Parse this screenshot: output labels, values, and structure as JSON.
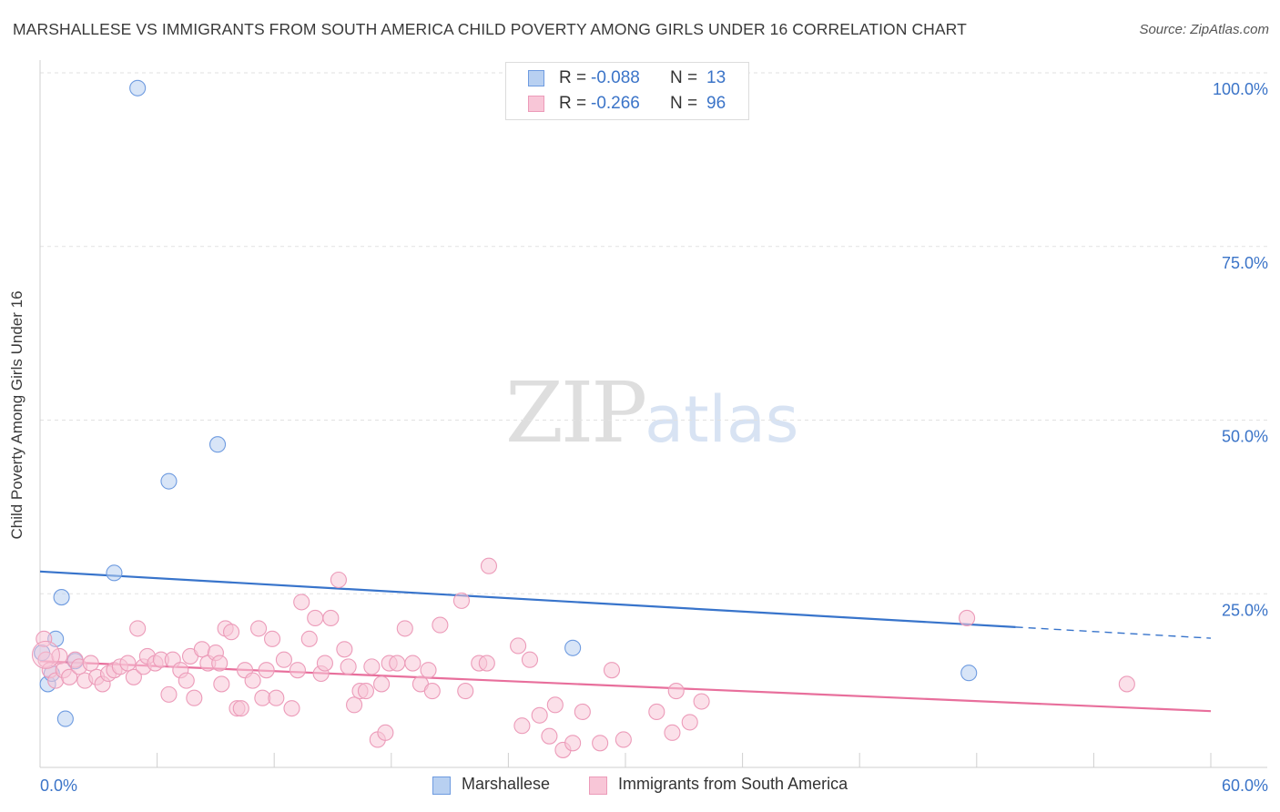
{
  "title": "MARSHALLESE VS IMMIGRANTS FROM SOUTH AMERICA CHILD POVERTY AMONG GIRLS UNDER 16 CORRELATION CHART",
  "source": "Source: ZipAtlas.com",
  "watermark": {
    "zip": "ZIP",
    "atlas": "atlas"
  },
  "colors": {
    "blue": "#3874cb",
    "blue_fill": "#b8d0f1",
    "blue_stroke": "#6e9be0",
    "pink": "#e86f9c",
    "pink_fill": "#f8c6d7",
    "pink_stroke": "#ec9bb9",
    "axis_label": "#3b74c8",
    "grid": "#e2e2e2"
  },
  "legend_top": [
    {
      "r_label": "R =",
      "r_value": "-0.088",
      "n_label": "N =",
      "n_value": "13"
    },
    {
      "r_label": "R =",
      "r_value": "-0.266",
      "n_label": "N =",
      "n_value": "96"
    }
  ],
  "legend_bottom": [
    "Marshallese",
    "Immigrants from South America"
  ],
  "chart_data": {
    "type": "scatter",
    "title": "MARSHALLESE VS IMMIGRANTS FROM SOUTH AMERICA CHILD POVERTY AMONG GIRLS UNDER 16 CORRELATION CHART",
    "xlabel": "",
    "ylabel": "Child Poverty Among Girls Under 16",
    "xlim": [
      0,
      60
    ],
    "ylim": [
      0,
      100
    ],
    "x_tick_labels": [
      "0.0%",
      "60.0%"
    ],
    "y_tick_labels": [
      "100.0%",
      "75.0%",
      "50.0%",
      "25.0%"
    ],
    "y_ticks": [
      100,
      75,
      50,
      25
    ],
    "grid": true,
    "series": [
      {
        "name": "Marshallese",
        "color": "#3874cb",
        "trend": {
          "x0": 0,
          "y0": 28.2,
          "x1": 50,
          "y1": 20.2,
          "dashed_to": 60,
          "dashed_y": 18.6
        },
        "points": [
          [
            0.1,
            16.5
          ],
          [
            0.4,
            12.0
          ],
          [
            0.6,
            13.5
          ],
          [
            0.8,
            18.5
          ],
          [
            1.1,
            24.5
          ],
          [
            1.3,
            7.0
          ],
          [
            1.8,
            15.3
          ],
          [
            3.8,
            28.0
          ],
          [
            5.0,
            97.8
          ],
          [
            6.6,
            41.2
          ],
          [
            9.1,
            46.5
          ],
          [
            27.3,
            17.2
          ],
          [
            47.6,
            13.6
          ]
        ]
      },
      {
        "name": "Immigrants from South America",
        "color": "#e86f9c",
        "trend": {
          "x0": 0,
          "y0": 15.3,
          "x1": 60,
          "y1": 8.1
        },
        "points": [
          [
            0.2,
            18.5
          ],
          [
            0.3,
            15.5
          ],
          [
            0.5,
            14.0
          ],
          [
            0.8,
            12.5
          ],
          [
            1.0,
            16.0
          ],
          [
            1.2,
            14.0
          ],
          [
            1.5,
            13.0
          ],
          [
            1.8,
            15.5
          ],
          [
            2.0,
            14.5
          ],
          [
            2.3,
            12.5
          ],
          [
            2.6,
            15.0
          ],
          [
            2.9,
            13.0
          ],
          [
            3.2,
            12.0
          ],
          [
            3.5,
            13.5
          ],
          [
            3.8,
            14.0
          ],
          [
            4.1,
            14.5
          ],
          [
            4.5,
            15.0
          ],
          [
            4.8,
            13.0
          ],
          [
            5.0,
            20.0
          ],
          [
            5.3,
            14.5
          ],
          [
            5.5,
            16.0
          ],
          [
            5.9,
            15.0
          ],
          [
            6.2,
            15.5
          ],
          [
            6.6,
            10.5
          ],
          [
            6.8,
            15.5
          ],
          [
            7.2,
            14.0
          ],
          [
            7.5,
            12.5
          ],
          [
            7.7,
            16.0
          ],
          [
            7.9,
            10.0
          ],
          [
            8.3,
            17.0
          ],
          [
            8.6,
            15.0
          ],
          [
            9.0,
            16.5
          ],
          [
            9.2,
            15.0
          ],
          [
            9.3,
            12.0
          ],
          [
            9.5,
            20.0
          ],
          [
            9.8,
            19.5
          ],
          [
            10.1,
            8.5
          ],
          [
            10.3,
            8.5
          ],
          [
            10.5,
            14.0
          ],
          [
            10.9,
            12.5
          ],
          [
            11.2,
            20.0
          ],
          [
            11.4,
            10.0
          ],
          [
            11.6,
            14.0
          ],
          [
            11.9,
            18.5
          ],
          [
            12.1,
            10.0
          ],
          [
            12.5,
            15.5
          ],
          [
            12.9,
            8.5
          ],
          [
            13.2,
            14.0
          ],
          [
            13.4,
            23.8
          ],
          [
            13.8,
            18.5
          ],
          [
            14.1,
            21.5
          ],
          [
            14.4,
            13.5
          ],
          [
            14.6,
            15.0
          ],
          [
            14.9,
            21.5
          ],
          [
            15.3,
            27.0
          ],
          [
            15.6,
            17.0
          ],
          [
            15.8,
            14.5
          ],
          [
            16.1,
            9.0
          ],
          [
            16.4,
            11.0
          ],
          [
            16.7,
            11.0
          ],
          [
            17.0,
            14.5
          ],
          [
            17.3,
            4.0
          ],
          [
            17.5,
            12.0
          ],
          [
            17.7,
            5.0
          ],
          [
            17.9,
            15.0
          ],
          [
            18.3,
            15.0
          ],
          [
            18.7,
            20.0
          ],
          [
            19.1,
            15.0
          ],
          [
            19.5,
            12.0
          ],
          [
            19.9,
            14.0
          ],
          [
            20.1,
            11.0
          ],
          [
            20.5,
            20.5
          ],
          [
            21.6,
            24.0
          ],
          [
            21.8,
            11.0
          ],
          [
            22.5,
            15.0
          ],
          [
            22.9,
            15.0
          ],
          [
            23.0,
            29.0
          ],
          [
            24.5,
            17.5
          ],
          [
            24.7,
            6.0
          ],
          [
            25.1,
            15.5
          ],
          [
            25.6,
            7.5
          ],
          [
            26.1,
            4.5
          ],
          [
            26.4,
            9.0
          ],
          [
            26.8,
            2.5
          ],
          [
            27.3,
            3.5
          ],
          [
            27.8,
            8.0
          ],
          [
            28.7,
            3.5
          ],
          [
            29.3,
            14.0
          ],
          [
            29.9,
            4.0
          ],
          [
            31.6,
            8.0
          ],
          [
            32.4,
            5.0
          ],
          [
            32.6,
            11.0
          ],
          [
            33.3,
            6.5
          ],
          [
            33.9,
            9.5
          ],
          [
            47.5,
            21.5
          ],
          [
            55.7,
            12.0
          ]
        ]
      }
    ]
  }
}
